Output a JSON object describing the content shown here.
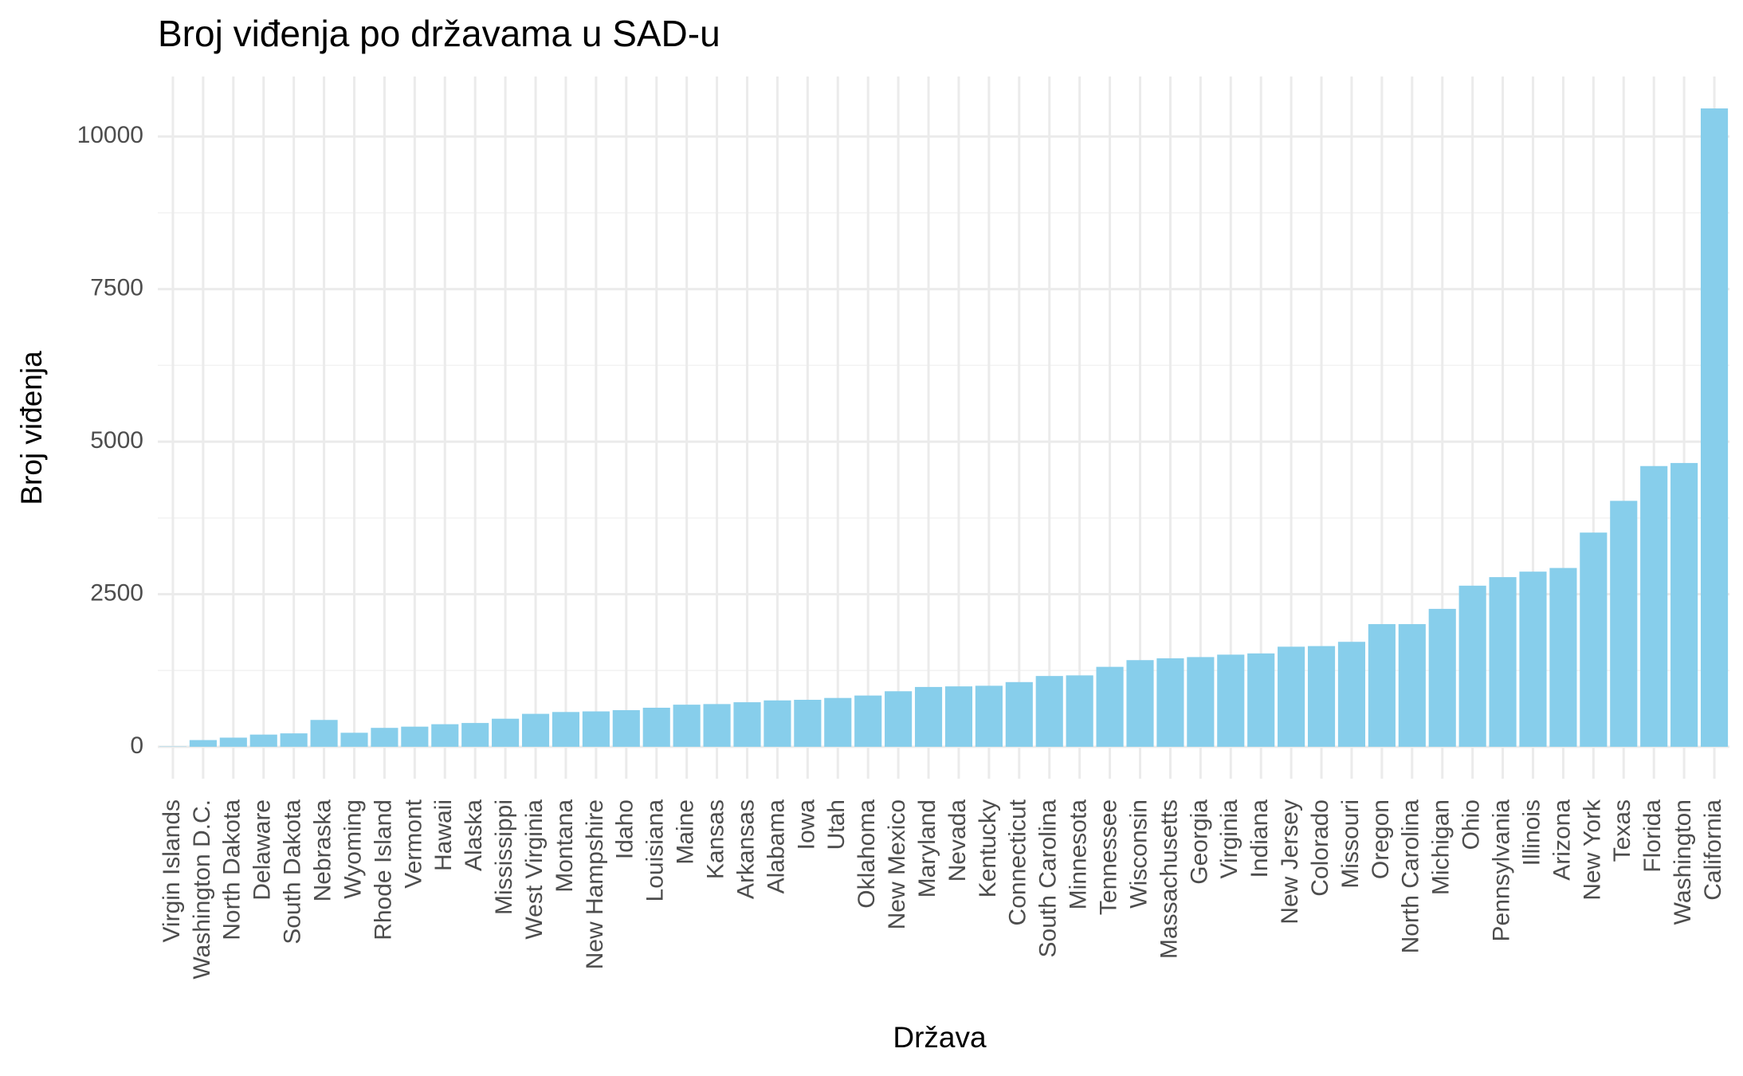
{
  "chart_data": {
    "type": "bar",
    "title": "Broj viđenja po državama u SAD-u",
    "x_label": "Država",
    "y_label": "Broj viđenja",
    "categories": [
      "Virgin Islands",
      "Washington D.C.",
      "North Dakota",
      "Delaware",
      "South Dakota",
      "Nebraska",
      "Wyoming",
      "Rhode Island",
      "Vermont",
      "Hawaii",
      "Alaska",
      "Mississippi",
      "West Virginia",
      "Montana",
      "New Hampshire",
      "Idaho",
      "Louisiana",
      "Maine",
      "Kansas",
      "Arkansas",
      "Alabama",
      "Iowa",
      "Utah",
      "Oklahoma",
      "New Mexico",
      "Maryland",
      "Nevada",
      "Kentucky",
      "Connecticut",
      "South Carolina",
      "Minnesota",
      "Tennessee",
      "Wisconsin",
      "Massachusetts",
      "Georgia",
      "Virginia",
      "Indiana",
      "New Jersey",
      "Colorado",
      "Missouri",
      "Oregon",
      "North Carolina",
      "Michigan",
      "Ohio",
      "Pennsylvania",
      "Illinois",
      "Arizona",
      "New York",
      "Texas",
      "Florida",
      "Washington",
      "California"
    ],
    "values": [
      5,
      110,
      150,
      200,
      220,
      440,
      230,
      310,
      330,
      370,
      390,
      460,
      540,
      570,
      580,
      600,
      640,
      690,
      700,
      730,
      760,
      770,
      800,
      840,
      910,
      980,
      990,
      1000,
      1060,
      1160,
      1170,
      1310,
      1420,
      1450,
      1470,
      1510,
      1530,
      1640,
      1650,
      1720,
      2010,
      2010,
      2260,
      2640,
      2780,
      2870,
      2930,
      3510,
      4030,
      4600,
      4650,
      10460
    ],
    "color": "#87ceeb",
    "ylim": [
      -523,
      10983
    ],
    "yticks": [
      0,
      2500,
      5000,
      7500,
      10000
    ],
    "y_minor_ticks": [
      1250,
      3750,
      6250,
      8750
    ],
    "grid": true
  }
}
